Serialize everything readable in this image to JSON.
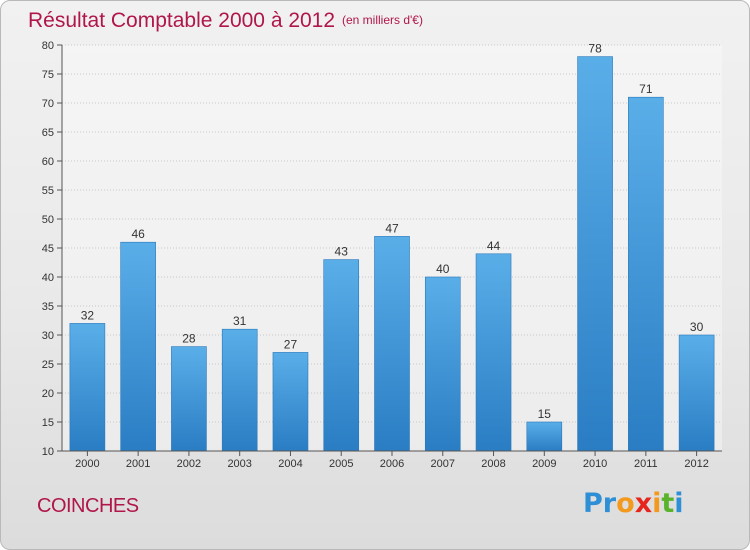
{
  "header": {
    "title": "Résultat Comptable 2000 à 2012",
    "subtitle": "(en milliers d'€)"
  },
  "footer": {
    "town": "COINCHES",
    "logo_letters": [
      "P",
      "r",
      "o",
      "x",
      "i",
      "t",
      "i"
    ],
    "logo_colors": [
      "#2e8fd6",
      "#2e8fd6",
      "#f39a1e",
      "#e6261c",
      "#f39a1e",
      "#5bb22b",
      "#2e8fd6"
    ]
  },
  "colors": {
    "bar_top": "#5aaee8",
    "bar_bottom": "#2a7dc3",
    "accent": "#b0164a"
  },
  "chart_data": {
    "type": "bar",
    "title": "Résultat Comptable 2000 à 2012",
    "subtitle": "(en milliers d'€)",
    "categories": [
      "2000",
      "2001",
      "2002",
      "2003",
      "2004",
      "2005",
      "2006",
      "2007",
      "2008",
      "2009",
      "2010",
      "2011",
      "2012"
    ],
    "values": [
      32,
      46,
      28,
      31,
      27,
      43,
      47,
      40,
      44,
      15,
      78,
      71,
      30
    ],
    "ylim": [
      10,
      80
    ],
    "yticks": [
      10,
      15,
      20,
      25,
      30,
      35,
      40,
      45,
      50,
      55,
      60,
      65,
      70,
      75,
      80
    ],
    "grid": true,
    "xlabel": "",
    "ylabel": ""
  }
}
